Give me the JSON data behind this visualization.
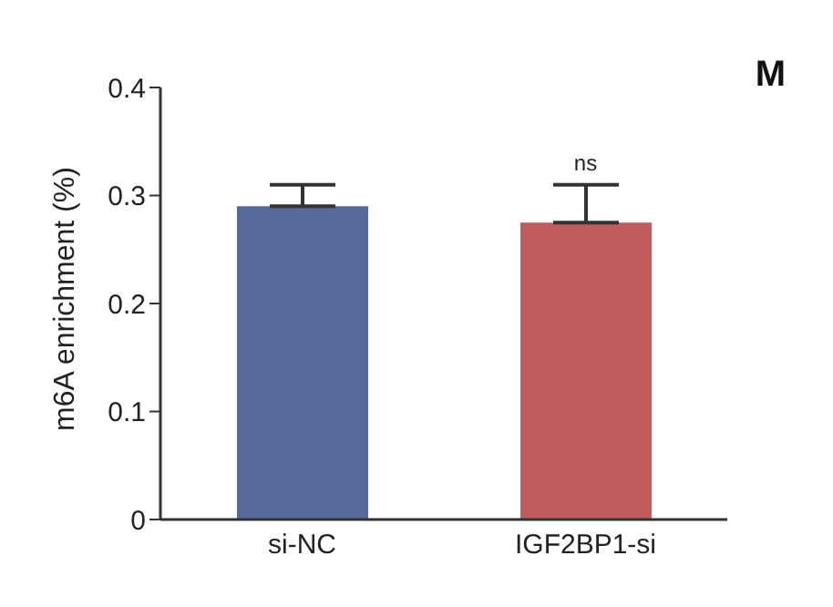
{
  "chart_data": {
    "type": "bar",
    "ylabel": "m6A enrichment (%)",
    "categories": [
      "si-NC",
      "IGF2BP1-si"
    ],
    "values": [
      0.29,
      0.275
    ],
    "colors": [
      "#56699b",
      "#c05b60"
    ],
    "errors": [
      [
        0.29,
        0.31
      ],
      [
        0.275,
        0.31
      ]
    ],
    "ylim": [
      0,
      0.4
    ],
    "yticks": [
      0,
      0.1,
      0.2,
      0.3,
      0.4
    ],
    "grid": false,
    "legend": false,
    "annotations": [
      "M",
      "ns"
    ]
  }
}
